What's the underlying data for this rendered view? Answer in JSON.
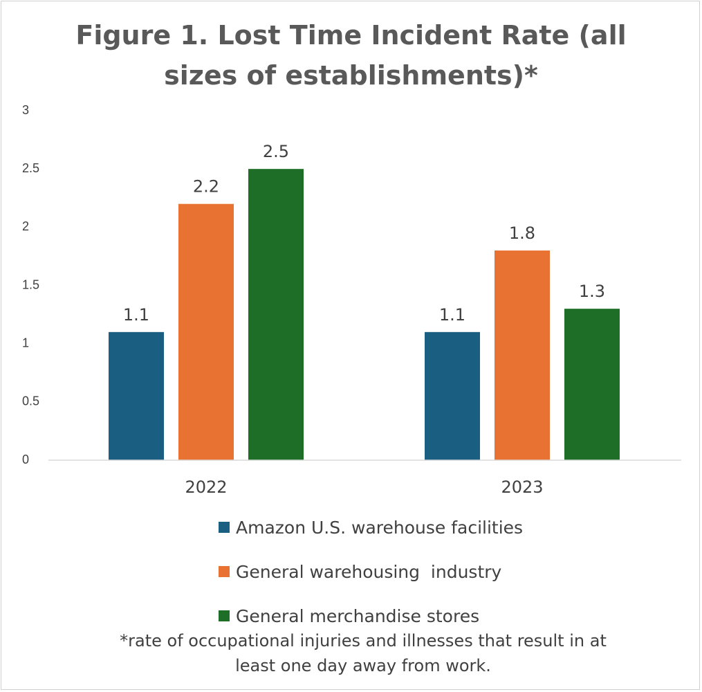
{
  "chart_data": {
    "type": "bar",
    "title_lines": [
      "Figure 1. Lost Time Incident Rate (all",
      "sizes of establishments)*"
    ],
    "categories": [
      "2022",
      "2023"
    ],
    "series": [
      {
        "name": "Amazon U.S. warehouse facilities",
        "values": [
          1.1,
          1.1
        ],
        "color": "#1a5e82"
      },
      {
        "name": "General warehousing  industry",
        "values": [
          2.2,
          1.8
        ],
        "color": "#e87232"
      },
      {
        "name": "General merchandise stores",
        "values": [
          2.5,
          1.3
        ],
        "color": "#1e6e27"
      }
    ],
    "ylim": [
      0,
      3
    ],
    "yticks": [
      "0",
      "0.5",
      "1",
      "1.5",
      "2",
      "2.5",
      "3"
    ],
    "data_labels": [
      [
        "1.1",
        "1.1"
      ],
      [
        "2.2",
        "1.8"
      ],
      [
        "2.5",
        "1.3"
      ]
    ],
    "grid": false,
    "legend_position": "bottom",
    "footnote_lines": [
      "*rate of  occupational injuries and illnesses that result in at",
      "least one day away from work."
    ]
  }
}
